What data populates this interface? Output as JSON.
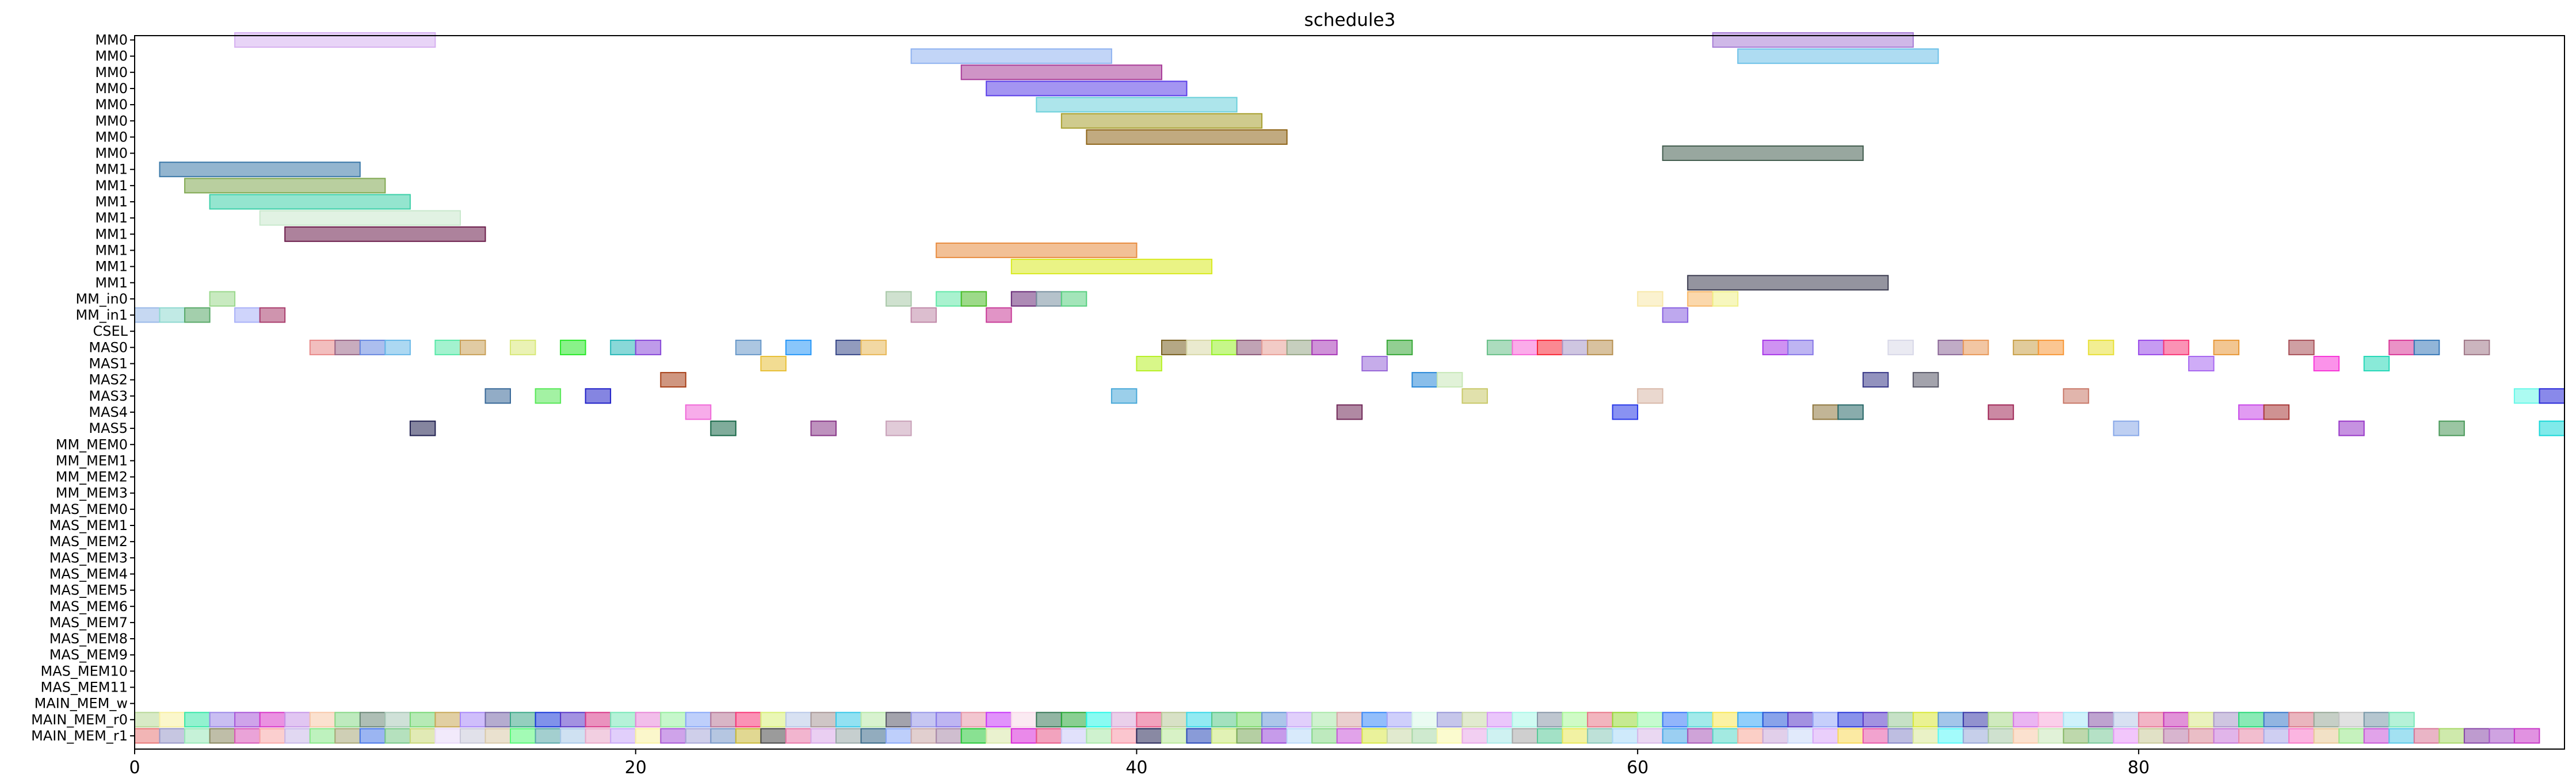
{
  "chart_data": {
    "type": "gantt",
    "title": "schedule3",
    "xlabel": "",
    "ylabel": "",
    "xlim": [
      0,
      97
    ],
    "xticks": [
      0,
      20,
      40,
      60,
      80
    ],
    "grid": false,
    "rows": [
      "MM0",
      "MM0",
      "MM0",
      "MM0",
      "MM0",
      "MM0",
      "MM0",
      "MM0",
      "MM1",
      "MM1",
      "MM1",
      "MM1",
      "MM1",
      "MM1",
      "MM1",
      "MM1",
      "MM_in0",
      "MM_in1",
      "CSEL",
      "MAS0",
      "MAS1",
      "MAS2",
      "MAS3",
      "MAS4",
      "MAS5",
      "MM_MEM0",
      "MM_MEM1",
      "MM_MEM2",
      "MM_MEM3",
      "MAS_MEM0",
      "MAS_MEM1",
      "MAS_MEM2",
      "MAS_MEM3",
      "MAS_MEM4",
      "MAS_MEM5",
      "MAS_MEM6",
      "MAS_MEM7",
      "MAS_MEM8",
      "MAS_MEM9",
      "MAS_MEM10",
      "MAS_MEM11",
      "MAIN_MEM_w",
      "MAIN_MEM_r0",
      "MAIN_MEM_r1"
    ],
    "tasks": [
      {
        "row": 0,
        "start": 4,
        "end": 12,
        "color": "#d6b0f0"
      },
      {
        "row": 0,
        "start": 63,
        "end": 71,
        "color": "#a87ed6"
      },
      {
        "row": 1,
        "start": 31,
        "end": 39,
        "color": "#8fb2f0"
      },
      {
        "row": 1,
        "start": 64,
        "end": 72,
        "color": "#6cc0e8"
      },
      {
        "row": 2,
        "start": 33,
        "end": 41,
        "color": "#a83c98"
      },
      {
        "row": 3,
        "start": 34,
        "end": 42,
        "color": "#5a3ee8"
      },
      {
        "row": 4,
        "start": 36,
        "end": 44,
        "color": "#6ad0da"
      },
      {
        "row": 5,
        "start": 37,
        "end": 45,
        "color": "#a8a030"
      },
      {
        "row": 6,
        "start": 38,
        "end": 46,
        "color": "#8e6418"
      },
      {
        "row": 7,
        "start": 61,
        "end": 69,
        "color": "#445e50"
      },
      {
        "row": 8,
        "start": 1,
        "end": 9,
        "color": "#3a78a8"
      },
      {
        "row": 9,
        "start": 2,
        "end": 10,
        "color": "#80a850"
      },
      {
        "row": 10,
        "start": 3,
        "end": 11,
        "color": "#3cd0a8"
      },
      {
        "row": 11,
        "start": 5,
        "end": 13,
        "color": "#c8e8cc"
      },
      {
        "row": 12,
        "start": 6,
        "end": 14,
        "color": "#6a1c4a"
      },
      {
        "row": 13,
        "start": 32,
        "end": 40,
        "color": "#e88c40"
      },
      {
        "row": 14,
        "start": 35,
        "end": 43,
        "color": "#d8ea20"
      },
      {
        "row": 15,
        "start": 62,
        "end": 70,
        "color": "#3c3c50"
      },
      {
        "row": 16,
        "start": 3,
        "end": 4,
        "color": "#9ad88c"
      },
      {
        "row": 16,
        "start": 30,
        "end": 31,
        "color": "#a8c8a8"
      },
      {
        "row": 16,
        "start": 32,
        "end": 33,
        "color": "#62e8a8"
      },
      {
        "row": 16,
        "start": 33,
        "end": 34,
        "color": "#4cbc28"
      },
      {
        "row": 16,
        "start": 35,
        "end": 36,
        "color": "#6a2c78"
      },
      {
        "row": 16,
        "start": 36,
        "end": 37,
        "color": "#7890a0"
      },
      {
        "row": 16,
        "start": 37,
        "end": 38,
        "color": "#58d080"
      },
      {
        "row": 16,
        "start": 60,
        "end": 61,
        "color": "#f8e8a8"
      },
      {
        "row": 16,
        "start": 62,
        "end": 63,
        "color": "#f8b868"
      },
      {
        "row": 16,
        "start": 63,
        "end": 64,
        "color": "#f0f088"
      },
      {
        "row": 17,
        "start": 0,
        "end": 1,
        "color": "#98b8e8"
      },
      {
        "row": 17,
        "start": 1,
        "end": 2,
        "color": "#8ed8d0"
      },
      {
        "row": 17,
        "start": 2,
        "end": 3,
        "color": "#58a868"
      },
      {
        "row": 17,
        "start": 4,
        "end": 5,
        "color": "#a8b0f8"
      },
      {
        "row": 17,
        "start": 5,
        "end": 6,
        "color": "#a83c6c"
      },
      {
        "row": 17,
        "start": 31,
        "end": 32,
        "color": "#c088a8"
      },
      {
        "row": 17,
        "start": 34,
        "end": 35,
        "color": "#c83c98"
      },
      {
        "row": 17,
        "start": 61,
        "end": 62,
        "color": "#8860e0"
      },
      {
        "row": 19,
        "start": 7,
        "end": 8,
        "color": "#e88888"
      },
      {
        "row": 19,
        "start": 8,
        "end": 9,
        "color": "#9a6888"
      },
      {
        "row": 19,
        "start": 9,
        "end": 10,
        "color": "#6888e0"
      },
      {
        "row": 19,
        "start": 10,
        "end": 11,
        "color": "#68b8e8"
      },
      {
        "row": 19,
        "start": 12,
        "end": 13,
        "color": "#58e8a8"
      },
      {
        "row": 19,
        "start": 13,
        "end": 14,
        "color": "#c8a058"
      },
      {
        "row": 19,
        "start": 15,
        "end": 16,
        "color": "#d8e878"
      },
      {
        "row": 19,
        "start": 17,
        "end": 18,
        "color": "#28e828"
      },
      {
        "row": 19,
        "start": 19,
        "end": 20,
        "color": "#28b8b8"
      },
      {
        "row": 19,
        "start": 20,
        "end": 21,
        "color": "#8848d8"
      },
      {
        "row": 19,
        "start": 24,
        "end": 25,
        "color": "#6898c8"
      },
      {
        "row": 19,
        "start": 26,
        "end": 27,
        "color": "#2898f8"
      },
      {
        "row": 19,
        "start": 28,
        "end": 29,
        "color": "#384888"
      },
      {
        "row": 19,
        "start": 29,
        "end": 30,
        "color": "#e8b858"
      },
      {
        "row": 19,
        "start": 41,
        "end": 42,
        "color": "#786020"
      },
      {
        "row": 19,
        "start": 42,
        "end": 43,
        "color": "#d8d8a8"
      },
      {
        "row": 19,
        "start": 43,
        "end": 44,
        "color": "#98f028"
      },
      {
        "row": 19,
        "start": 44,
        "end": 45,
        "color": "#8c5878"
      },
      {
        "row": 19,
        "start": 45,
        "end": 46,
        "color": "#e8a098"
      },
      {
        "row": 19,
        "start": 46,
        "end": 47,
        "color": "#98a888"
      },
      {
        "row": 19,
        "start": 47,
        "end": 48,
        "color": "#a838b8"
      },
      {
        "row": 19,
        "start": 50,
        "end": 51,
        "color": "#38a838"
      },
      {
        "row": 19,
        "start": 54,
        "end": 55,
        "color": "#68c088"
      },
      {
        "row": 19,
        "start": 55,
        "end": 56,
        "color": "#f868d8"
      },
      {
        "row": 19,
        "start": 56,
        "end": 57,
        "color": "#f82838"
      },
      {
        "row": 19,
        "start": 57,
        "end": 58,
        "color": "#a898c8"
      },
      {
        "row": 19,
        "start": 58,
        "end": 59,
        "color": "#b89050"
      },
      {
        "row": 19,
        "start": 65,
        "end": 66,
        "color": "#a838e8"
      },
      {
        "row": 19,
        "start": 66,
        "end": 67,
        "color": "#8878e8"
      },
      {
        "row": 19,
        "start": 70,
        "end": 71,
        "color": "#d8d8e8"
      },
      {
        "row": 19,
        "start": 72,
        "end": 73,
        "color": "#8c6898"
      },
      {
        "row": 19,
        "start": 73,
        "end": 74,
        "color": "#e89858"
      },
      {
        "row": 19,
        "start": 75,
        "end": 76,
        "color": "#c8a048"
      },
      {
        "row": 19,
        "start": 76,
        "end": 77,
        "color": "#f89838"
      },
      {
        "row": 19,
        "start": 78,
        "end": 79,
        "color": "#e8e038"
      },
      {
        "row": 19,
        "start": 80,
        "end": 81,
        "color": "#9848e8"
      },
      {
        "row": 19,
        "start": 81,
        "end": 82,
        "color": "#f83878"
      },
      {
        "row": 19,
        "start": 83,
        "end": 84,
        "color": "#e89838"
      },
      {
        "row": 19,
        "start": 86,
        "end": 87,
        "color": "#a85058"
      },
      {
        "row": 19,
        "start": 90,
        "end": 91,
        "color": "#d83898"
      },
      {
        "row": 19,
        "start": 91,
        "end": 92,
        "color": "#3878b8"
      },
      {
        "row": 19,
        "start": 93,
        "end": 94,
        "color": "#a07888"
      },
      {
        "row": 20,
        "start": 25,
        "end": 26,
        "color": "#e8c038"
      },
      {
        "row": 20,
        "start": 40,
        "end": 41,
        "color": "#b8f028"
      },
      {
        "row": 20,
        "start": 49,
        "end": 50,
        "color": "#9868d8"
      },
      {
        "row": 20,
        "start": 82,
        "end": 83,
        "color": "#a868f0"
      },
      {
        "row": 20,
        "start": 87,
        "end": 88,
        "color": "#f838d8"
      },
      {
        "row": 20,
        "start": 89,
        "end": 90,
        "color": "#28d8b8"
      },
      {
        "row": 21,
        "start": 21,
        "end": 22,
        "color": "#a84018"
      },
      {
        "row": 21,
        "start": 51,
        "end": 52,
        "color": "#2888d8"
      },
      {
        "row": 21,
        "start": 52,
        "end": 53,
        "color": "#c8e8b8"
      },
      {
        "row": 21,
        "start": 69,
        "end": 70,
        "color": "#383888"
      },
      {
        "row": 21,
        "start": 71,
        "end": 72,
        "color": "#585868"
      },
      {
        "row": 22,
        "start": 14,
        "end": 15,
        "color": "#386898"
      },
      {
        "row": 22,
        "start": 16,
        "end": 17,
        "color": "#58e858"
      },
      {
        "row": 22,
        "start": 18,
        "end": 19,
        "color": "#2020c8"
      },
      {
        "row": 22,
        "start": 39,
        "end": 40,
        "color": "#48a8d8"
      },
      {
        "row": 22,
        "start": 53,
        "end": 54,
        "color": "#c8c868"
      },
      {
        "row": 22,
        "start": 60,
        "end": 61,
        "color": "#d8b8a8"
      },
      {
        "row": 22,
        "start": 77,
        "end": 78,
        "color": "#c87868"
      },
      {
        "row": 22,
        "start": 95,
        "end": 96,
        "color": "#68f8e8"
      },
      {
        "row": 22,
        "start": 96,
        "end": 97,
        "color": "#2828d8"
      },
      {
        "row": 23,
        "start": 22,
        "end": 23,
        "color": "#f068d8"
      },
      {
        "row": 23,
        "start": 48,
        "end": 49,
        "color": "#702858"
      },
      {
        "row": 23,
        "start": 59,
        "end": 60,
        "color": "#2838e8"
      },
      {
        "row": 23,
        "start": 67,
        "end": 68,
        "color": "#907840"
      },
      {
        "row": 23,
        "start": 68,
        "end": 69,
        "color": "#286868"
      },
      {
        "row": 23,
        "start": 74,
        "end": 75,
        "color": "#a02858"
      },
      {
        "row": 23,
        "start": 84,
        "end": 85,
        "color": "#c848e8"
      },
      {
        "row": 23,
        "start": 85,
        "end": 86,
        "color": "#a83838"
      },
      {
        "row": 24,
        "start": 11,
        "end": 12,
        "color": "#202050"
      },
      {
        "row": 24,
        "start": 23,
        "end": 24,
        "color": "#186848"
      },
      {
        "row": 24,
        "start": 27,
        "end": 28,
        "color": "#883888"
      },
      {
        "row": 24,
        "start": 30,
        "end": 31,
        "color": "#c8a0b8"
      },
      {
        "row": 24,
        "start": 79,
        "end": 80,
        "color": "#88a8e8"
      },
      {
        "row": 24,
        "start": 88,
        "end": 89,
        "color": "#9838c8"
      },
      {
        "row": 24,
        "start": 92,
        "end": 93,
        "color": "#489858"
      },
      {
        "row": 24,
        "start": 96,
        "end": 97,
        "color": "#18d8d8"
      }
    ],
    "main_mem_r0_colors": [
      "#b8d898",
      "#f8f0a0",
      "#38e8a8",
      "#9c88e8",
      "#a858d8",
      "#d838c8",
      "#c898e8",
      "#f8c8a8",
      "#88d888",
      "#6c8878",
      "#a8c8b8",
      "#7ad878",
      "#c8a858",
      "#a888f8",
      "#7868a8",
      "#3ca888",
      "#1838d8",
      "#5838c8",
      "#d83888",
      "#78e8b8",
      "#e888d8",
      "#98f0a0",
      "#88a8f8",
      "#b87898",
      "#f83878",
      "#d8f078",
      "#b8c8e8",
      "#a89898",
      "#38c8e8",
      "#b8e8a8",
      "#585868",
      "#9898e8",
      "#8878e8",
      "#e898a8",
      "#c838f8",
      "#f8d8e8",
      "#387858",
      "#28a838",
      "#28f8e8",
      "#d8a8d8",
      "#e85888",
      "#b8c898",
      "#38d8e8",
      "#58c888",
      "#78d868",
      "#6898d8",
      "#c8a8f8",
      "#a8e8a8",
      "#d8a8a8",
      "#3888f8",
      "#a8a8f8",
      "#d8f8e8",
      "#9898d8",
      "#c8d8a8",
      "#d898f8",
      "#a8f8e8",
      "#8898a8",
      "#a8f898",
      "#e87888",
      "#98d838",
      "#98f8a8",
      "#3878f8",
      "#58d8d8",
      "#f8e858",
      "#38a8f8",
      "#2858d8",
      "#5838c8",
      "#98a8f8",
      "#2838d8",
      "#5838c8",
      "#98c898",
      "#d8e838",
      "#5898d8",
      "#3838a8",
      "#a8d888",
      "#d878e8",
      "#f8a8d8",
      "#a8e8f8",
      "#8858a8",
      "#b8c8e8",
      "#e87898",
      "#c838b8",
      "#d8e888",
      "#a898c8",
      "#28d878",
      "#3878c8",
      "#d87888",
      "#98a898",
      "#c8c8c8",
      "#7898a8",
      "#78e8b8"
    ],
    "main_mem_r1_colors": [
      "#e87878",
      "#9898c8",
      "#98e8b8",
      "#8a8860",
      "#d858b8",
      "#f8a8a8",
      "#c8b8e8",
      "#88e888",
      "#a8a878",
      "#4878e8",
      "#78c888",
      "#c8d878",
      "#e8d8f8",
      "#c8c8d8",
      "#d8c8a8",
      "#58f878",
      "#58a8a8",
      "#a8c8e8",
      "#e8a8c8",
      "#c8a8f8",
      "#f8f0a0",
      "#a858d8",
      "#a8a8d8",
      "#7898c8",
      "#c8b838",
      "#484848",
      "#e878a8",
      "#d8a8e8",
      "#98a8a8",
      "#386888",
      "#88a8f8",
      "#c8a8a8",
      "#a888a8",
      "#28c838",
      "#d8e8a8",
      "#d828d8",
      "#e85888",
      "#c8c8f8",
      "#a8e8a8",
      "#f898a8",
      "#282858",
      "#b8e898",
      "#2848b8",
      "#c8e878",
      "#78a858",
      "#9848d8",
      "#b8d8f8",
      "#88d888",
      "#c858d8",
      "#d8e848",
      "#c8d8a8",
      "#a8d8a8",
      "#f8f8a8",
      "#e8a8e8",
      "#a8e8e8",
      "#a8a8a8",
      "#58c898",
      "#e8e858",
      "#88c8b8",
      "#a8d8f8",
      "#d8b8e8",
      "#48a8e8",
      "#a858b8",
      "#58d8c8",
      "#f8a898",
      "#c8a8d8",
      "#c8d8f8",
      "#d8a8f8",
      "#f8d858",
      "#e858a8",
      "#8888c8",
      "#d8e898",
      "#58f8f8",
      "#98a8d8",
      "#a8c8a8",
      "#f8c8a8",
      "#c8e8b8",
      "#88b868",
      "#78c898",
      "#e898f8",
      "#c8c898",
      "#b878a8",
      "#d88898",
      "#c878d8",
      "#e888a8",
      "#a8a8e8",
      "#f878c8",
      "#e8c898",
      "#98e888",
      "#c858d8",
      "#58c8e8",
      "#d87898",
      "#a8d868",
      "#8848a8",
      "#a858c8",
      "#c838c8"
    ]
  }
}
